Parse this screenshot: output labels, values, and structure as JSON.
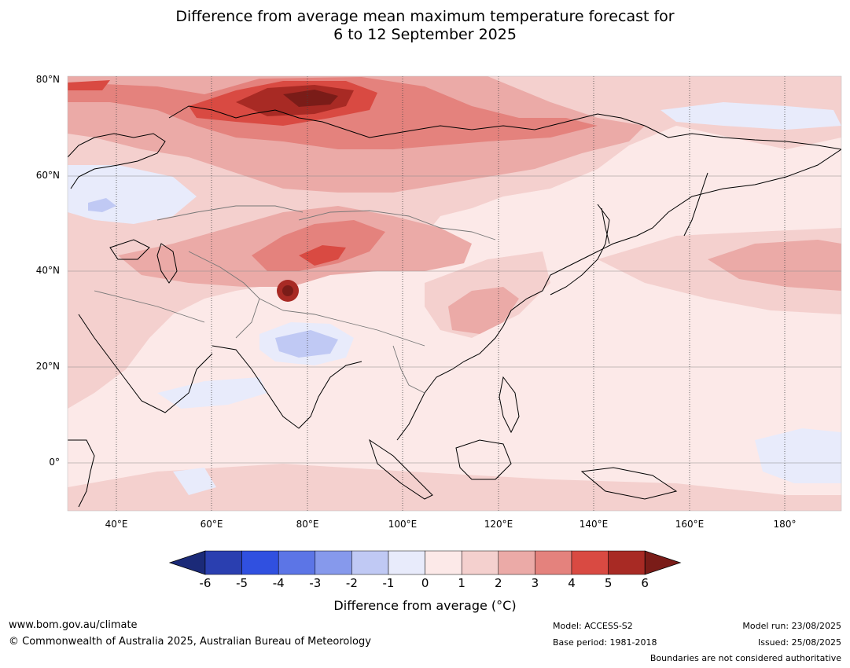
{
  "title_line1": "Difference from average mean maximum temperature forecast for",
  "title_line2": "6 to 12 September 2025",
  "lat_labels": [
    "80°N",
    "60°N",
    "40°N",
    "20°N",
    "0°"
  ],
  "lon_labels": [
    "40°E",
    "60°E",
    "80°E",
    "100°E",
    "120°E",
    "140°E",
    "160°E",
    "180°"
  ],
  "colorbar": {
    "ticks": [
      "-6",
      "-5",
      "-4",
      "-3",
      "-2",
      "-1",
      "0",
      "1",
      "2",
      "3",
      "4",
      "5",
      "6"
    ],
    "colors": [
      "#1b2a78",
      "#2a3fb0",
      "#3050e0",
      "#5c75e6",
      "#8699ec",
      "#c0c9f4",
      "#e8ebfb",
      "#fce9e8",
      "#f4d0ce",
      "#ebaaa7",
      "#e4827d",
      "#d94a42",
      "#a82a24",
      "#7a1c18"
    ],
    "label": "Difference from average (°C)"
  },
  "footer": {
    "url": "www.bom.gov.au/climate",
    "copyright": "© Commonwealth of Australia 2025, Australian Bureau of Meteorology",
    "model": "Model: ACCESS-S2",
    "base_period": "Base period: 1981-2018",
    "model_run": "Model run: 23/08/2025",
    "issued": "Issued: 25/08/2025",
    "disclaimer": "Boundaries are not considered authoritative"
  }
}
